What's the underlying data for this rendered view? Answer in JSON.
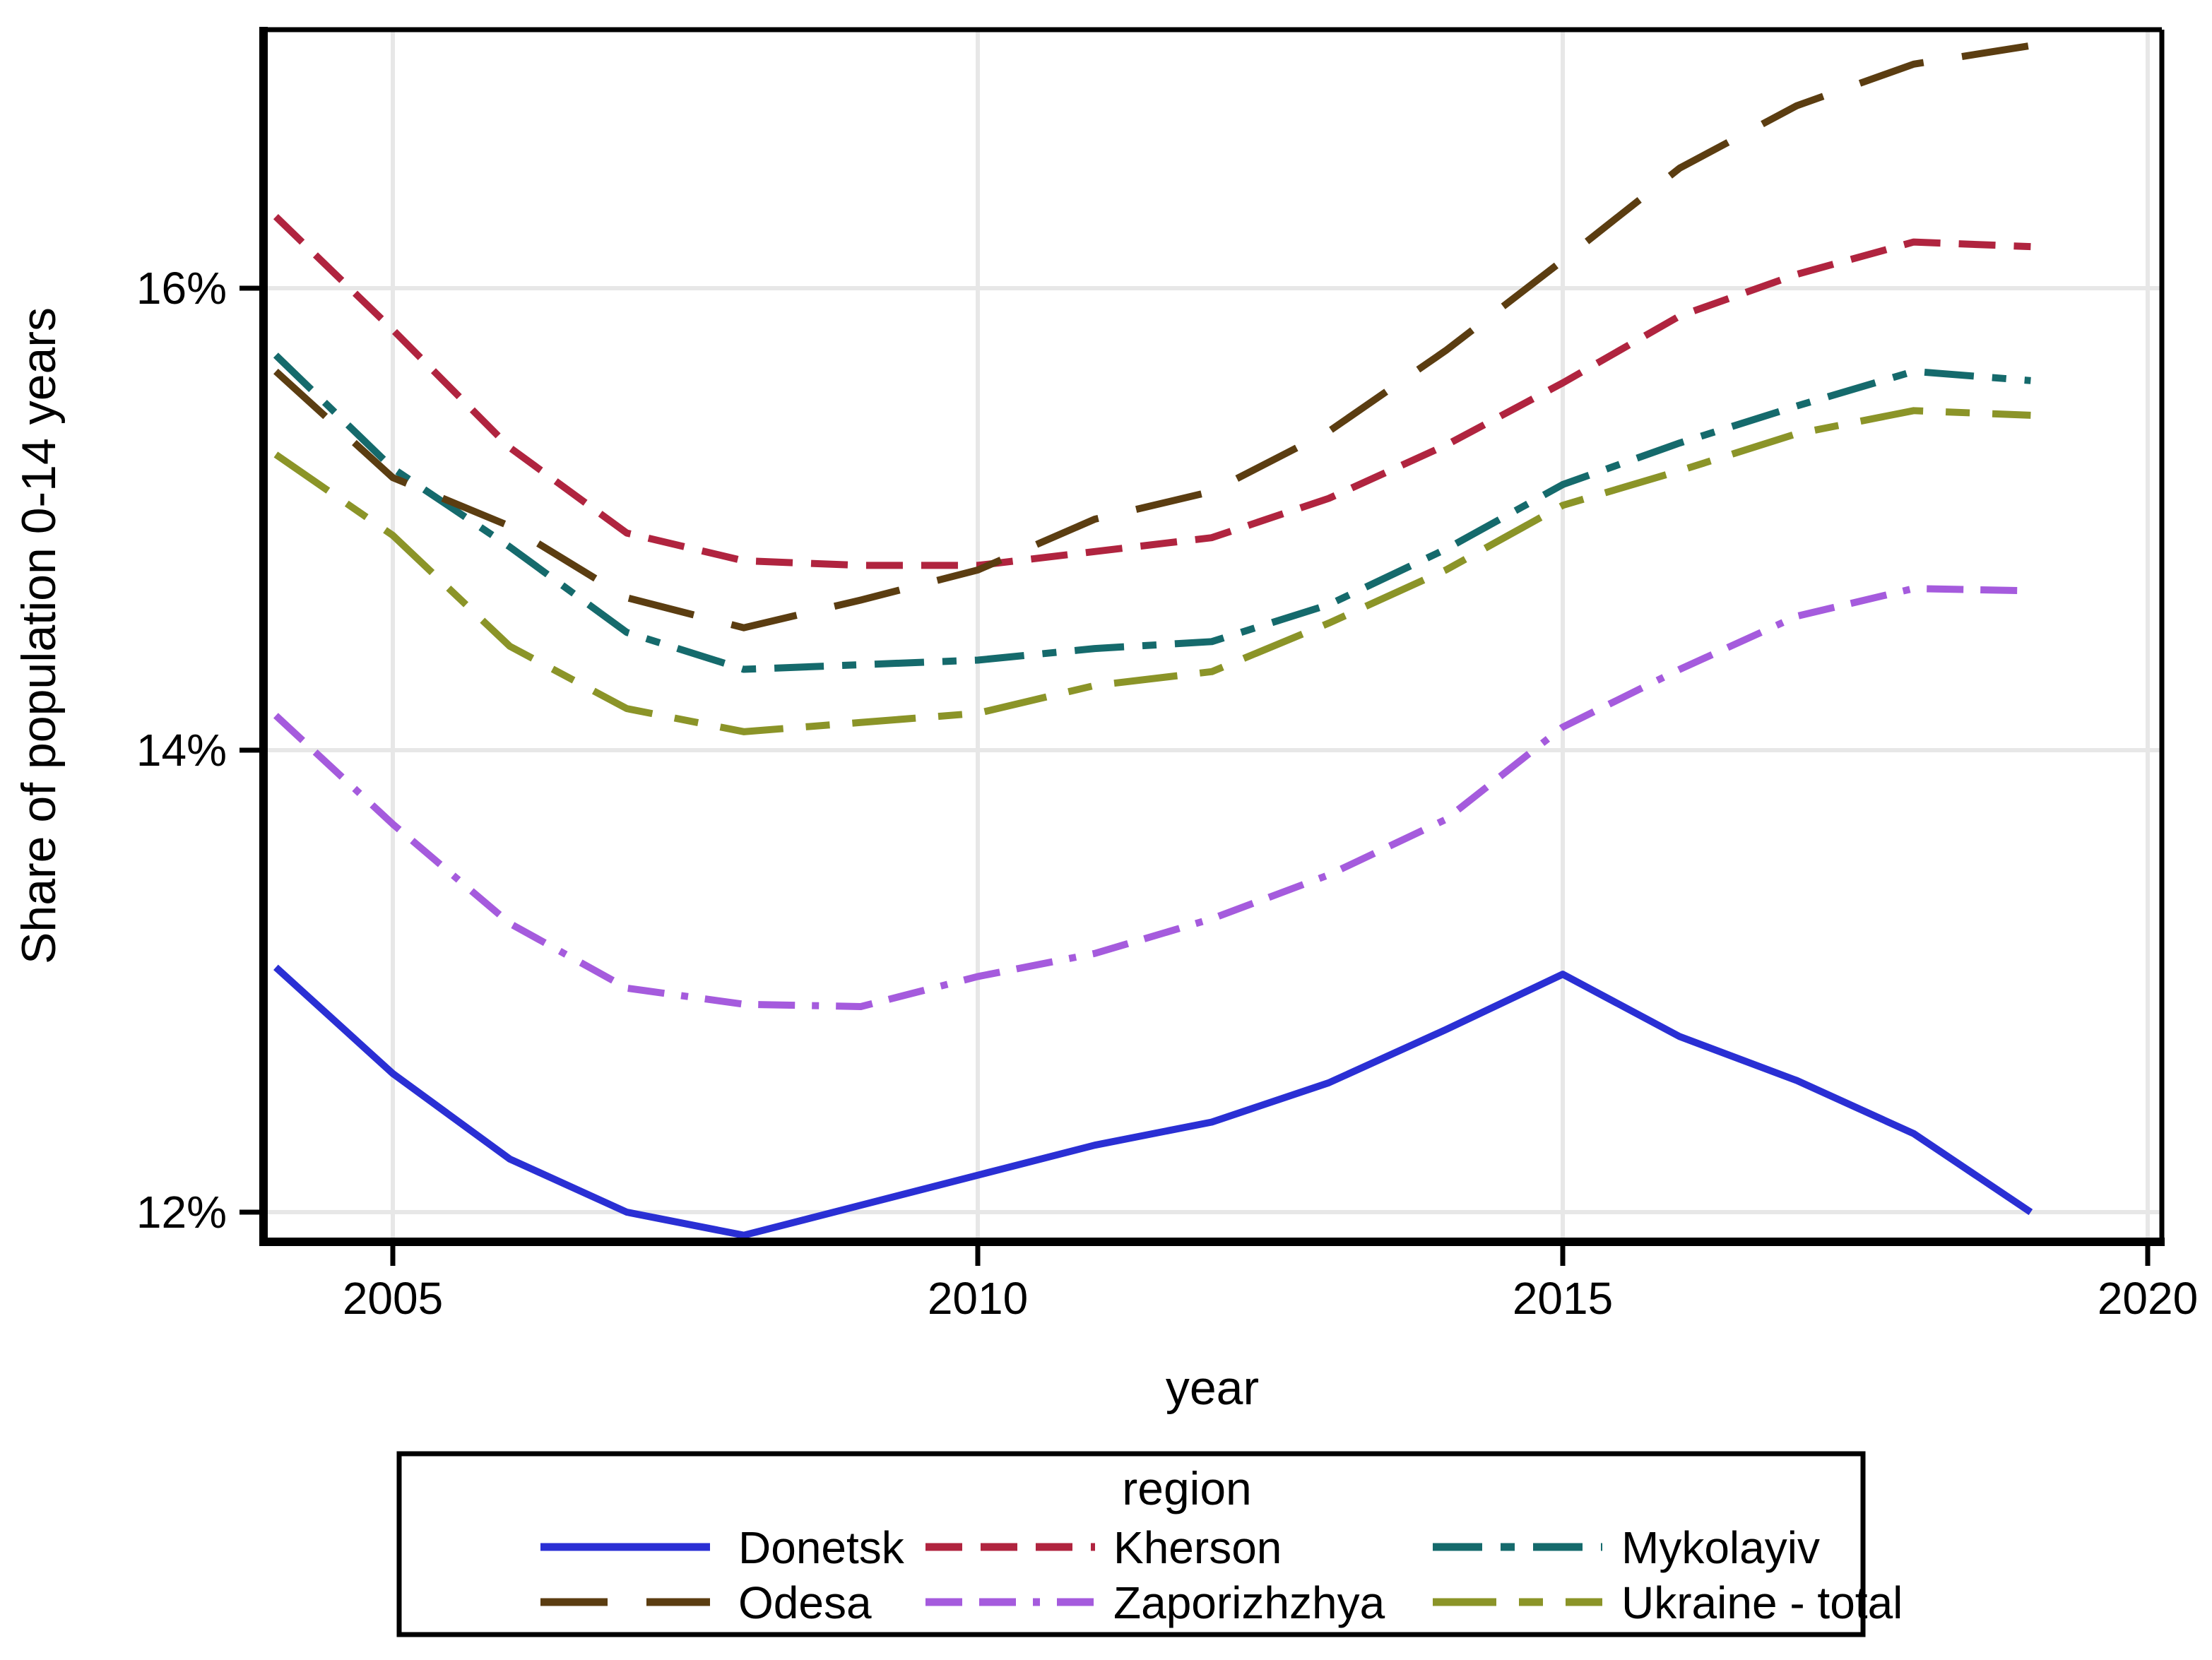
{
  "chart_data": {
    "type": "line",
    "title": "",
    "xlabel": "year",
    "ylabel": "Share of population 0-14 years",
    "legend_title": "region",
    "legend_position": "below",
    "grid": true,
    "x": [
      2004,
      2005,
      2006,
      2007,
      2008,
      2009,
      2010,
      2011,
      2012,
      2013,
      2014,
      2015,
      2016,
      2017,
      2018,
      2019
    ],
    "x_ticks": [
      2005,
      2010,
      2015,
      2020
    ],
    "y_ticks": [
      {
        "value": 12,
        "label": "12%"
      },
      {
        "value": 14,
        "label": "14%"
      },
      {
        "value": 16,
        "label": "16%"
      }
    ],
    "xlim": [
      2003.9,
      2020.12
    ],
    "ylim": [
      11.87,
      17.12
    ],
    "series": [
      {
        "name": "Donetsk",
        "color": "#2a2fd4",
        "style": "solid",
        "values": [
          13.06,
          12.6,
          12.23,
          12.0,
          11.9,
          12.03,
          12.16,
          12.29,
          12.39,
          12.56,
          12.79,
          13.03,
          12.76,
          12.57,
          12.34,
          12.0
        ]
      },
      {
        "name": "Kherson",
        "color": "#b0243f",
        "style": "dash",
        "values": [
          16.31,
          15.82,
          15.31,
          14.94,
          14.82,
          14.8,
          14.8,
          14.86,
          14.92,
          15.09,
          15.32,
          15.59,
          15.88,
          16.06,
          16.2,
          16.18
        ]
      },
      {
        "name": "Mykolayiv",
        "color": "#156a6c",
        "style": "dashdot",
        "values": [
          15.71,
          15.22,
          14.88,
          14.51,
          14.35,
          14.37,
          14.39,
          14.44,
          14.47,
          14.63,
          14.87,
          15.15,
          15.33,
          15.49,
          15.64,
          15.6
        ]
      },
      {
        "name": "Odesa",
        "color": "#5b3d11",
        "style": "longdash",
        "values": [
          15.64,
          15.18,
          14.97,
          14.66,
          14.53,
          14.65,
          14.78,
          15.0,
          15.12,
          15.38,
          15.73,
          16.12,
          16.52,
          16.79,
          16.97,
          17.05
        ]
      },
      {
        "name": "Zaporizhzhya",
        "color": "#a55bdd",
        "style": "dashdashdot",
        "values": [
          14.15,
          13.68,
          13.25,
          12.97,
          12.9,
          12.89,
          13.02,
          13.12,
          13.27,
          13.46,
          13.7,
          14.1,
          14.35,
          14.58,
          14.7,
          14.69
        ]
      },
      {
        "name": "Ukraine - total",
        "color": "#8b9428",
        "style": "longdash-shortdash",
        "values": [
          15.28,
          14.93,
          14.45,
          14.18,
          14.08,
          14.12,
          14.16,
          14.28,
          14.34,
          14.55,
          14.78,
          15.06,
          15.21,
          15.37,
          15.47,
          15.45
        ]
      }
    ]
  }
}
